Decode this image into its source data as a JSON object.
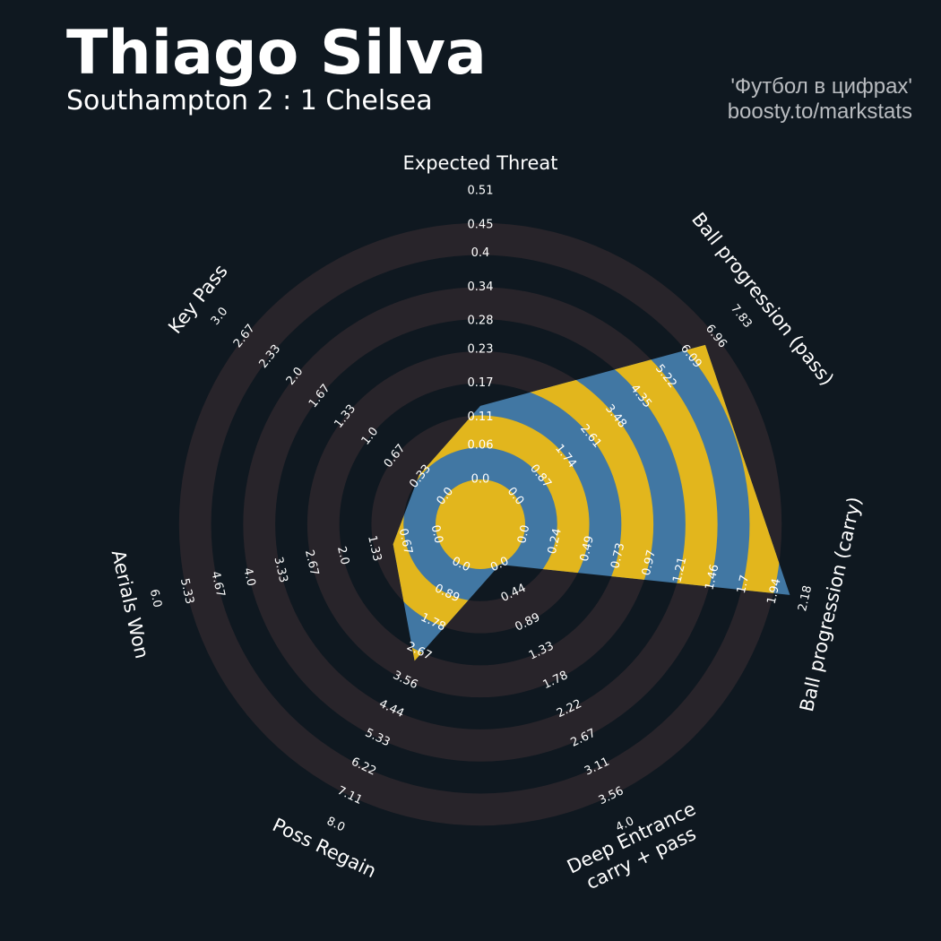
{
  "chart_data": {
    "type": "radar",
    "title": "Thiago Silva",
    "subtitle": "Southampton 2 : 1 Chelsea",
    "credits": [
      "'Футбол в цифрах'",
      "boosty.to/markstats"
    ],
    "params": [
      "Expected Threat",
      "Ball progression (pass)",
      "Ball progression (carry)",
      "Deep Entrance\ncarry + pass",
      "Poss Regain",
      "Aerials Won",
      "Key Pass"
    ],
    "ranges": [
      [
        0,
        0.51
      ],
      [
        0,
        7.83
      ],
      [
        0,
        2.18
      ],
      [
        0,
        4
      ],
      [
        0,
        8
      ],
      [
        0,
        6
      ],
      [
        0,
        3
      ]
    ],
    "ticks": [
      [
        {
          "value": 0,
          "label": "0.0"
        },
        0.06,
        0.11,
        0.17,
        0.23,
        0.28,
        0.34,
        0.4,
        0.45,
        0.51
      ],
      [
        {
          "value": 0,
          "label": "0.0"
        },
        0.87,
        1.74,
        2.61,
        3.48,
        4.35,
        5.22,
        6.09,
        6.96,
        7.83
      ],
      [
        {
          "value": 0,
          "label": "0.0"
        },
        0.24,
        0.49,
        0.73,
        0.97,
        1.21,
        1.46,
        1.7,
        1.94,
        2.18
      ],
      [
        {
          "value": 0,
          "label": "0.0"
        },
        0.44,
        0.89,
        1.33,
        1.78,
        2.22,
        2.67,
        3.11,
        3.56,
        {
          "value": 4,
          "label": "4.0"
        }
      ],
      [
        {
          "value": 0,
          "label": "0.0"
        },
        0.89,
        1.78,
        2.67,
        3.56,
        4.44,
        5.33,
        6.22,
        7.11,
        {
          "value": 8,
          "label": "8.0"
        }
      ],
      [
        {
          "value": 0,
          "label": "0.0"
        },
        0.67,
        1.33,
        {
          "value": 2,
          "label": "2.0"
        },
        2.67,
        3.33,
        {
          "value": 4,
          "label": "4.0"
        },
        4.67,
        5.33,
        {
          "value": 6,
          "label": "6.0"
        }
      ],
      [
        {
          "value": 0,
          "label": "0.0"
        },
        0.33,
        0.67,
        {
          "value": 1,
          "label": "1.0"
        },
        1.33,
        1.67,
        {
          "value": 2,
          "label": "2.0"
        },
        2.33,
        2.67,
        {
          "value": 3,
          "label": "3.0"
        }
      ]
    ],
    "values": [
      0.13,
      6.59,
      2.06,
      0,
      2.96,
      0.93,
      0.35
    ],
    "color": "#4177a3",
    "ring_color": "#e2b61d"
  }
}
